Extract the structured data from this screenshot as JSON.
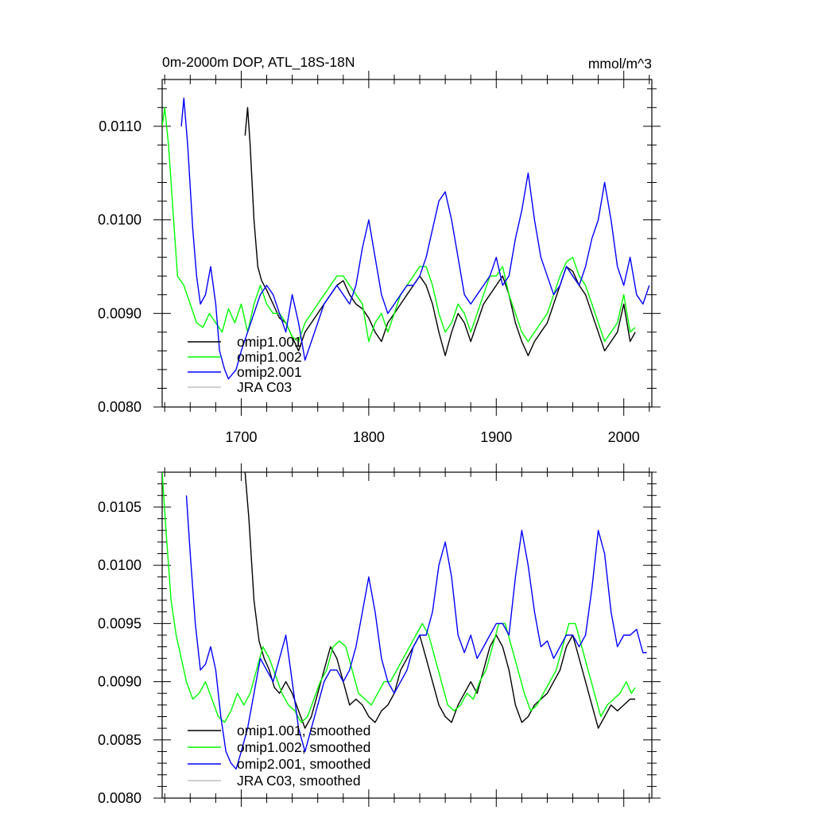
{
  "figure": {
    "title": "0m-2000m DOP, ATL_18S-18N",
    "units": "mmol/m^3"
  },
  "chart_data": [
    {
      "type": "line",
      "title": "0m-2000m DOP, ATL_18S-18N",
      "units": "mmol/m^3",
      "xlim": [
        1638,
        2022
      ],
      "ylim": [
        0.008,
        0.0115
      ],
      "xticks": [
        1700,
        1800,
        1900,
        2000
      ],
      "xtick_labels": [
        "1700",
        "1800",
        "1900",
        "2000"
      ],
      "yticks": [
        0.008,
        0.009,
        0.01,
        0.011
      ],
      "ytick_labels": [
        "0.0080",
        "0.0090",
        "0.0100",
        "0.0110"
      ],
      "legend": {
        "placement": "bottom-left",
        "entries": [
          "omip1.001",
          "omip1.002",
          "omip2.001",
          "JRA C03"
        ]
      },
      "series": [
        {
          "name": "omip1.001",
          "color": "#000000",
          "x": [
            1703,
            1705,
            1707,
            1710,
            1713,
            1716,
            1720,
            1725,
            1730,
            1735,
            1740,
            1745,
            1750,
            1755,
            1760,
            1765,
            1770,
            1775,
            1780,
            1785,
            1790,
            1795,
            1800,
            1805,
            1810,
            1815,
            1820,
            1825,
            1830,
            1835,
            1840,
            1845,
            1850,
            1855,
            1860,
            1865,
            1870,
            1875,
            1880,
            1885,
            1890,
            1895,
            1900,
            1905,
            1910,
            1915,
            1920,
            1925,
            1930,
            1935,
            1940,
            1945,
            1950,
            1955,
            1960,
            1965,
            1970,
            1975,
            1980,
            1985,
            1990,
            1995,
            2000,
            2005,
            2009
          ],
          "y": [
            0.0109,
            0.0112,
            0.0108,
            0.01,
            0.0095,
            0.00935,
            0.00925,
            0.0091,
            0.00895,
            0.0089,
            0.00875,
            0.0086,
            0.0088,
            0.0089,
            0.009,
            0.0091,
            0.0092,
            0.0093,
            0.00935,
            0.0092,
            0.0091,
            0.00905,
            0.00895,
            0.0088,
            0.0087,
            0.0089,
            0.009,
            0.0091,
            0.0092,
            0.0093,
            0.0094,
            0.0093,
            0.0091,
            0.0088,
            0.00855,
            0.0088,
            0.009,
            0.0089,
            0.0087,
            0.0089,
            0.0091,
            0.0092,
            0.0093,
            0.0094,
            0.0092,
            0.0089,
            0.0087,
            0.00855,
            0.0087,
            0.0088,
            0.0089,
            0.0091,
            0.0093,
            0.0095,
            0.00945,
            0.0093,
            0.0092,
            0.009,
            0.0088,
            0.0086,
            0.0087,
            0.0088,
            0.0091,
            0.0087,
            0.0088
          ]
        },
        {
          "name": "omip1.002",
          "color": "#00ff00",
          "x": [
            1638,
            1640,
            1643,
            1647,
            1650,
            1655,
            1660,
            1665,
            1670,
            1675,
            1680,
            1685,
            1690,
            1695,
            1700,
            1705,
            1710,
            1715,
            1720,
            1725,
            1730,
            1735,
            1740,
            1745,
            1750,
            1755,
            1760,
            1765,
            1770,
            1775,
            1780,
            1785,
            1790,
            1795,
            1800,
            1805,
            1810,
            1815,
            1820,
            1825,
            1830,
            1835,
            1840,
            1845,
            1850,
            1855,
            1860,
            1865,
            1870,
            1875,
            1880,
            1885,
            1890,
            1895,
            1900,
            1905,
            1910,
            1915,
            1920,
            1925,
            1930,
            1935,
            1940,
            1945,
            1950,
            1955,
            1960,
            1965,
            1970,
            1975,
            1980,
            1985,
            1990,
            1995,
            2000,
            2005,
            2009
          ],
          "y": [
            0.011,
            0.0112,
            0.0108,
            0.01,
            0.0094,
            0.0093,
            0.0091,
            0.0089,
            0.00885,
            0.009,
            0.0089,
            0.0088,
            0.00905,
            0.0089,
            0.0091,
            0.0088,
            0.0091,
            0.0093,
            0.0091,
            0.009,
            0.009,
            0.0089,
            0.00875,
            0.0087,
            0.0089,
            0.009,
            0.0091,
            0.0092,
            0.0093,
            0.0094,
            0.0094,
            0.0093,
            0.0092,
            0.0091,
            0.0087,
            0.0089,
            0.009,
            0.0088,
            0.009,
            0.0092,
            0.0093,
            0.0094,
            0.0095,
            0.0095,
            0.0093,
            0.009,
            0.0088,
            0.0089,
            0.0091,
            0.009,
            0.0088,
            0.009,
            0.0092,
            0.0094,
            0.0094,
            0.0095,
            0.0092,
            0.009,
            0.0088,
            0.0087,
            0.0088,
            0.0089,
            0.009,
            0.0092,
            0.0094,
            0.00955,
            0.0096,
            0.0094,
            0.0093,
            0.0091,
            0.0089,
            0.0087,
            0.0088,
            0.0089,
            0.0092,
            0.0088,
            0.00885
          ]
        },
        {
          "name": "omip2.001",
          "color": "#0000ff",
          "x": [
            1653,
            1655,
            1658,
            1662,
            1665,
            1668,
            1672,
            1676,
            1680,
            1683,
            1687,
            1690,
            1693,
            1696,
            1700,
            1705,
            1710,
            1715,
            1720,
            1725,
            1730,
            1735,
            1740,
            1745,
            1750,
            1755,
            1760,
            1765,
            1770,
            1775,
            1780,
            1785,
            1790,
            1795,
            1800,
            1805,
            1810,
            1815,
            1820,
            1825,
            1830,
            1835,
            1840,
            1845,
            1850,
            1855,
            1860,
            1865,
            1870,
            1875,
            1880,
            1885,
            1890,
            1895,
            1900,
            1905,
            1910,
            1915,
            1920,
            1925,
            1930,
            1935,
            1940,
            1945,
            1950,
            1955,
            1960,
            1965,
            1970,
            1975,
            1980,
            1985,
            1990,
            1995,
            2000,
            2005,
            2010,
            2015,
            2020
          ],
          "y": [
            0.011,
            0.0113,
            0.0108,
            0.0099,
            0.0094,
            0.0091,
            0.0092,
            0.0095,
            0.0091,
            0.0086,
            0.0084,
            0.0083,
            0.00835,
            0.0084,
            0.0086,
            0.0088,
            0.009,
            0.0092,
            0.0093,
            0.0092,
            0.009,
            0.0088,
            0.0092,
            0.0089,
            0.0085,
            0.0087,
            0.0089,
            0.0091,
            0.0092,
            0.0093,
            0.0092,
            0.0091,
            0.0093,
            0.0097,
            0.01,
            0.0096,
            0.0092,
            0.009,
            0.0091,
            0.0092,
            0.0093,
            0.0093,
            0.0094,
            0.0096,
            0.0099,
            0.0102,
            0.0103,
            0.01,
            0.0096,
            0.0092,
            0.0091,
            0.0092,
            0.0093,
            0.0094,
            0.0096,
            0.0093,
            0.0094,
            0.0098,
            0.0101,
            0.0105,
            0.01,
            0.0096,
            0.0094,
            0.0092,
            0.0093,
            0.0095,
            0.0094,
            0.0093,
            0.0095,
            0.0098,
            0.01,
            0.0104,
            0.01,
            0.0095,
            0.0093,
            0.0096,
            0.0092,
            0.0091,
            0.0093
          ]
        },
        {
          "name": "JRA C03",
          "color": "#bfbfbf",
          "x": [],
          "y": []
        }
      ]
    },
    {
      "type": "line",
      "xlim": [
        1638,
        2022
      ],
      "ylim": [
        0.008,
        0.0108
      ],
      "xticks": [
        1700,
        1800,
        1900,
        2000
      ],
      "xtick_labels": [
        "",
        "",
        "",
        ""
      ],
      "yticks": [
        0.008,
        0.0085,
        0.009,
        0.0095,
        0.01,
        0.0105
      ],
      "ytick_labels": [
        "0.0080",
        "0.0085",
        "0.0090",
        "0.0095",
        "0.0100",
        "0.0105"
      ],
      "legend": {
        "placement": "bottom-left",
        "entries": [
          "omip1.001, smoothed",
          "omip1.002, smoothed",
          "omip2.001, smoothed",
          "JRA C03, smoothed"
        ]
      },
      "series": [
        {
          "name": "omip1.001, smoothed",
          "color": "#000000",
          "x": [
            1703,
            1706,
            1710,
            1714,
            1718,
            1722,
            1726,
            1730,
            1735,
            1740,
            1745,
            1750,
            1755,
            1760,
            1765,
            1770,
            1775,
            1780,
            1785,
            1790,
            1795,
            1800,
            1805,
            1810,
            1815,
            1820,
            1825,
            1830,
            1835,
            1840,
            1845,
            1850,
            1855,
            1860,
            1865,
            1870,
            1875,
            1880,
            1885,
            1890,
            1895,
            1900,
            1905,
            1910,
            1915,
            1920,
            1925,
            1930,
            1935,
            1940,
            1945,
            1950,
            1955,
            1960,
            1965,
            1970,
            1975,
            1980,
            1985,
            1990,
            1995,
            2000,
            2005,
            2009
          ],
          "y": [
            0.0108,
            0.0104,
            0.0097,
            0.00935,
            0.0092,
            0.0091,
            0.00895,
            0.0089,
            0.009,
            0.0089,
            0.00875,
            0.0086,
            0.0087,
            0.0089,
            0.0091,
            0.0093,
            0.0092,
            0.009,
            0.0088,
            0.00885,
            0.0088,
            0.0087,
            0.00865,
            0.00875,
            0.0088,
            0.0089,
            0.0091,
            0.0092,
            0.0093,
            0.0094,
            0.0092,
            0.009,
            0.0088,
            0.0087,
            0.00865,
            0.0088,
            0.0089,
            0.009,
            0.0089,
            0.0091,
            0.0093,
            0.0094,
            0.0093,
            0.0091,
            0.0088,
            0.00865,
            0.0087,
            0.0088,
            0.00885,
            0.0089,
            0.009,
            0.0091,
            0.0093,
            0.0094,
            0.0092,
            0.009,
            0.0088,
            0.0086,
            0.0087,
            0.0088,
            0.00875,
            0.0088,
            0.00885,
            0.00885
          ]
        },
        {
          "name": "omip1.002, smoothed",
          "color": "#00ff00",
          "x": [
            1638,
            1641,
            1645,
            1649,
            1653,
            1657,
            1662,
            1667,
            1672,
            1677,
            1682,
            1687,
            1692,
            1697,
            1702,
            1707,
            1712,
            1717,
            1722,
            1727,
            1732,
            1737,
            1742,
            1747,
            1752,
            1757,
            1762,
            1767,
            1772,
            1777,
            1782,
            1787,
            1792,
            1797,
            1802,
            1807,
            1812,
            1817,
            1822,
            1827,
            1832,
            1837,
            1842,
            1847,
            1852,
            1857,
            1862,
            1867,
            1872,
            1877,
            1882,
            1887,
            1892,
            1897,
            1902,
            1907,
            1912,
            1917,
            1922,
            1927,
            1932,
            1937,
            1942,
            1947,
            1952,
            1957,
            1962,
            1967,
            1972,
            1977,
            1982,
            1987,
            1992,
            1997,
            2002,
            2006,
            2009
          ],
          "y": [
            0.0108,
            0.0103,
            0.0097,
            0.0094,
            0.0092,
            0.009,
            0.00885,
            0.0089,
            0.009,
            0.00885,
            0.0087,
            0.00865,
            0.00875,
            0.0089,
            0.0088,
            0.0089,
            0.0091,
            0.0093,
            0.0092,
            0.00905,
            0.0089,
            0.0088,
            0.00875,
            0.00865,
            0.0087,
            0.00885,
            0.009,
            0.0091,
            0.0093,
            0.00935,
            0.0093,
            0.0091,
            0.0089,
            0.00885,
            0.0088,
            0.0089,
            0.009,
            0.009,
            0.0091,
            0.0092,
            0.0093,
            0.0094,
            0.0095,
            0.0094,
            0.0092,
            0.009,
            0.0088,
            0.00875,
            0.0088,
            0.0089,
            0.00885,
            0.009,
            0.0091,
            0.0093,
            0.0095,
            0.0095,
            0.0093,
            0.0091,
            0.0089,
            0.00875,
            0.0088,
            0.0089,
            0.009,
            0.0091,
            0.0093,
            0.0095,
            0.0095,
            0.0093,
            0.0091,
            0.0089,
            0.0087,
            0.0088,
            0.00885,
            0.0089,
            0.009,
            0.0089,
            0.00895
          ]
        },
        {
          "name": "omip2.001, smoothed",
          "color": "#0000ff",
          "x": [
            1657,
            1660,
            1664,
            1668,
            1672,
            1676,
            1680,
            1684,
            1688,
            1692,
            1696,
            1700,
            1705,
            1710,
            1715,
            1720,
            1725,
            1730,
            1735,
            1740,
            1745,
            1750,
            1755,
            1760,
            1765,
            1770,
            1775,
            1780,
            1785,
            1790,
            1795,
            1800,
            1805,
            1810,
            1815,
            1820,
            1825,
            1830,
            1835,
            1840,
            1845,
            1850,
            1855,
            1860,
            1865,
            1870,
            1875,
            1880,
            1885,
            1890,
            1895,
            1900,
            1905,
            1910,
            1915,
            1920,
            1925,
            1930,
            1935,
            1940,
            1945,
            1950,
            1955,
            1960,
            1965,
            1970,
            1975,
            1980,
            1985,
            1990,
            1995,
            2000,
            2005,
            2010,
            2015,
            2018
          ],
          "y": [
            0.0106,
            0.0101,
            0.0095,
            0.0091,
            0.00915,
            0.0093,
            0.0091,
            0.0087,
            0.0084,
            0.0083,
            0.00825,
            0.0084,
            0.0086,
            0.0089,
            0.0092,
            0.0091,
            0.009,
            0.0092,
            0.0094,
            0.009,
            0.0086,
            0.0084,
            0.0086,
            0.0088,
            0.009,
            0.0091,
            0.0091,
            0.009,
            0.0091,
            0.0093,
            0.0096,
            0.0099,
            0.0096,
            0.0092,
            0.009,
            0.0089,
            0.009,
            0.0091,
            0.0093,
            0.0094,
            0.0094,
            0.0096,
            0.01,
            0.0102,
            0.0099,
            0.0094,
            0.00925,
            0.0094,
            0.0092,
            0.0093,
            0.0094,
            0.0095,
            0.0095,
            0.0094,
            0.0099,
            0.0103,
            0.01,
            0.0096,
            0.0093,
            0.00935,
            0.0092,
            0.0093,
            0.0094,
            0.0094,
            0.0093,
            0.0094,
            0.0098,
            0.0103,
            0.0101,
            0.0096,
            0.0093,
            0.0094,
            0.0094,
            0.00945,
            0.00925,
            0.00925
          ]
        },
        {
          "name": "JRA C03, smoothed",
          "color": "#bfbfbf",
          "x": [],
          "y": []
        }
      ]
    }
  ]
}
